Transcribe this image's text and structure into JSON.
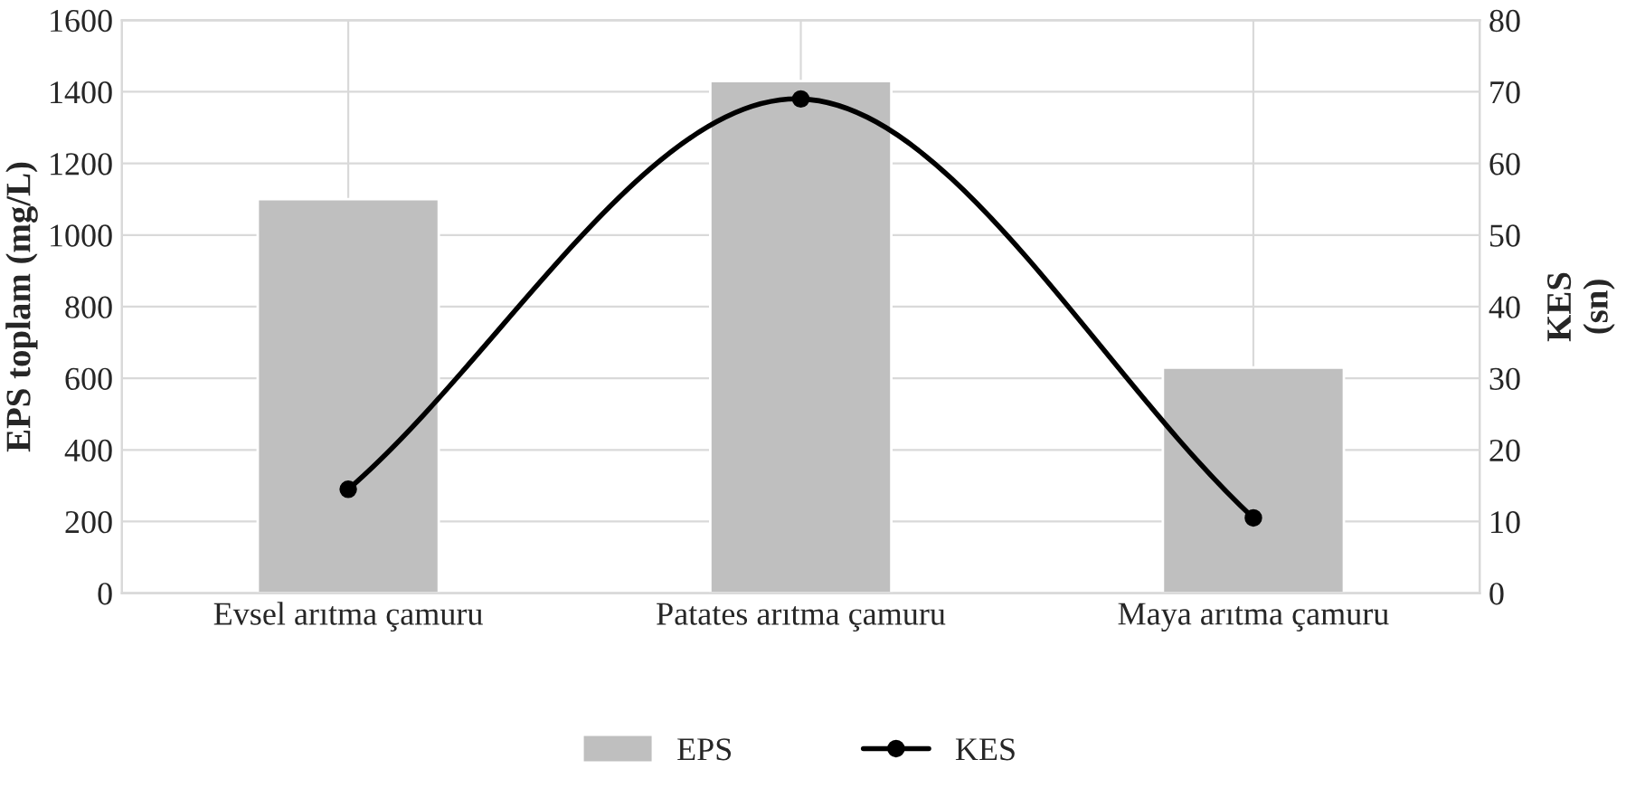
{
  "chart_data": {
    "type": "bar",
    "ylabel": "EPS toplam (mg/L)",
    "y2label": "KES\n(sn)",
    "categories": [
      "Evsel arıtma çamuru",
      "Patates arıtma çamuru",
      "Maya arıtma çamuru"
    ],
    "series": [
      {
        "name": "EPS",
        "color": "#bfbfbf",
        "values": [
          1100,
          1430,
          630
        ]
      },
      {
        "name": "KES",
        "type": "line",
        "axis": "y2",
        "color": "#000000",
        "values": [
          14.5,
          69,
          10.5
        ],
        "marker": "circle"
      }
    ],
    "ylim": [
      0,
      1600
    ],
    "yticks": [
      0,
      200,
      400,
      600,
      800,
      1000,
      1200,
      1400,
      1600
    ],
    "y2lim": [
      0,
      80
    ],
    "y2ticks": [
      0,
      10,
      20,
      30,
      40,
      50,
      60,
      70,
      80
    ],
    "grid": true,
    "legend": "bottom"
  }
}
